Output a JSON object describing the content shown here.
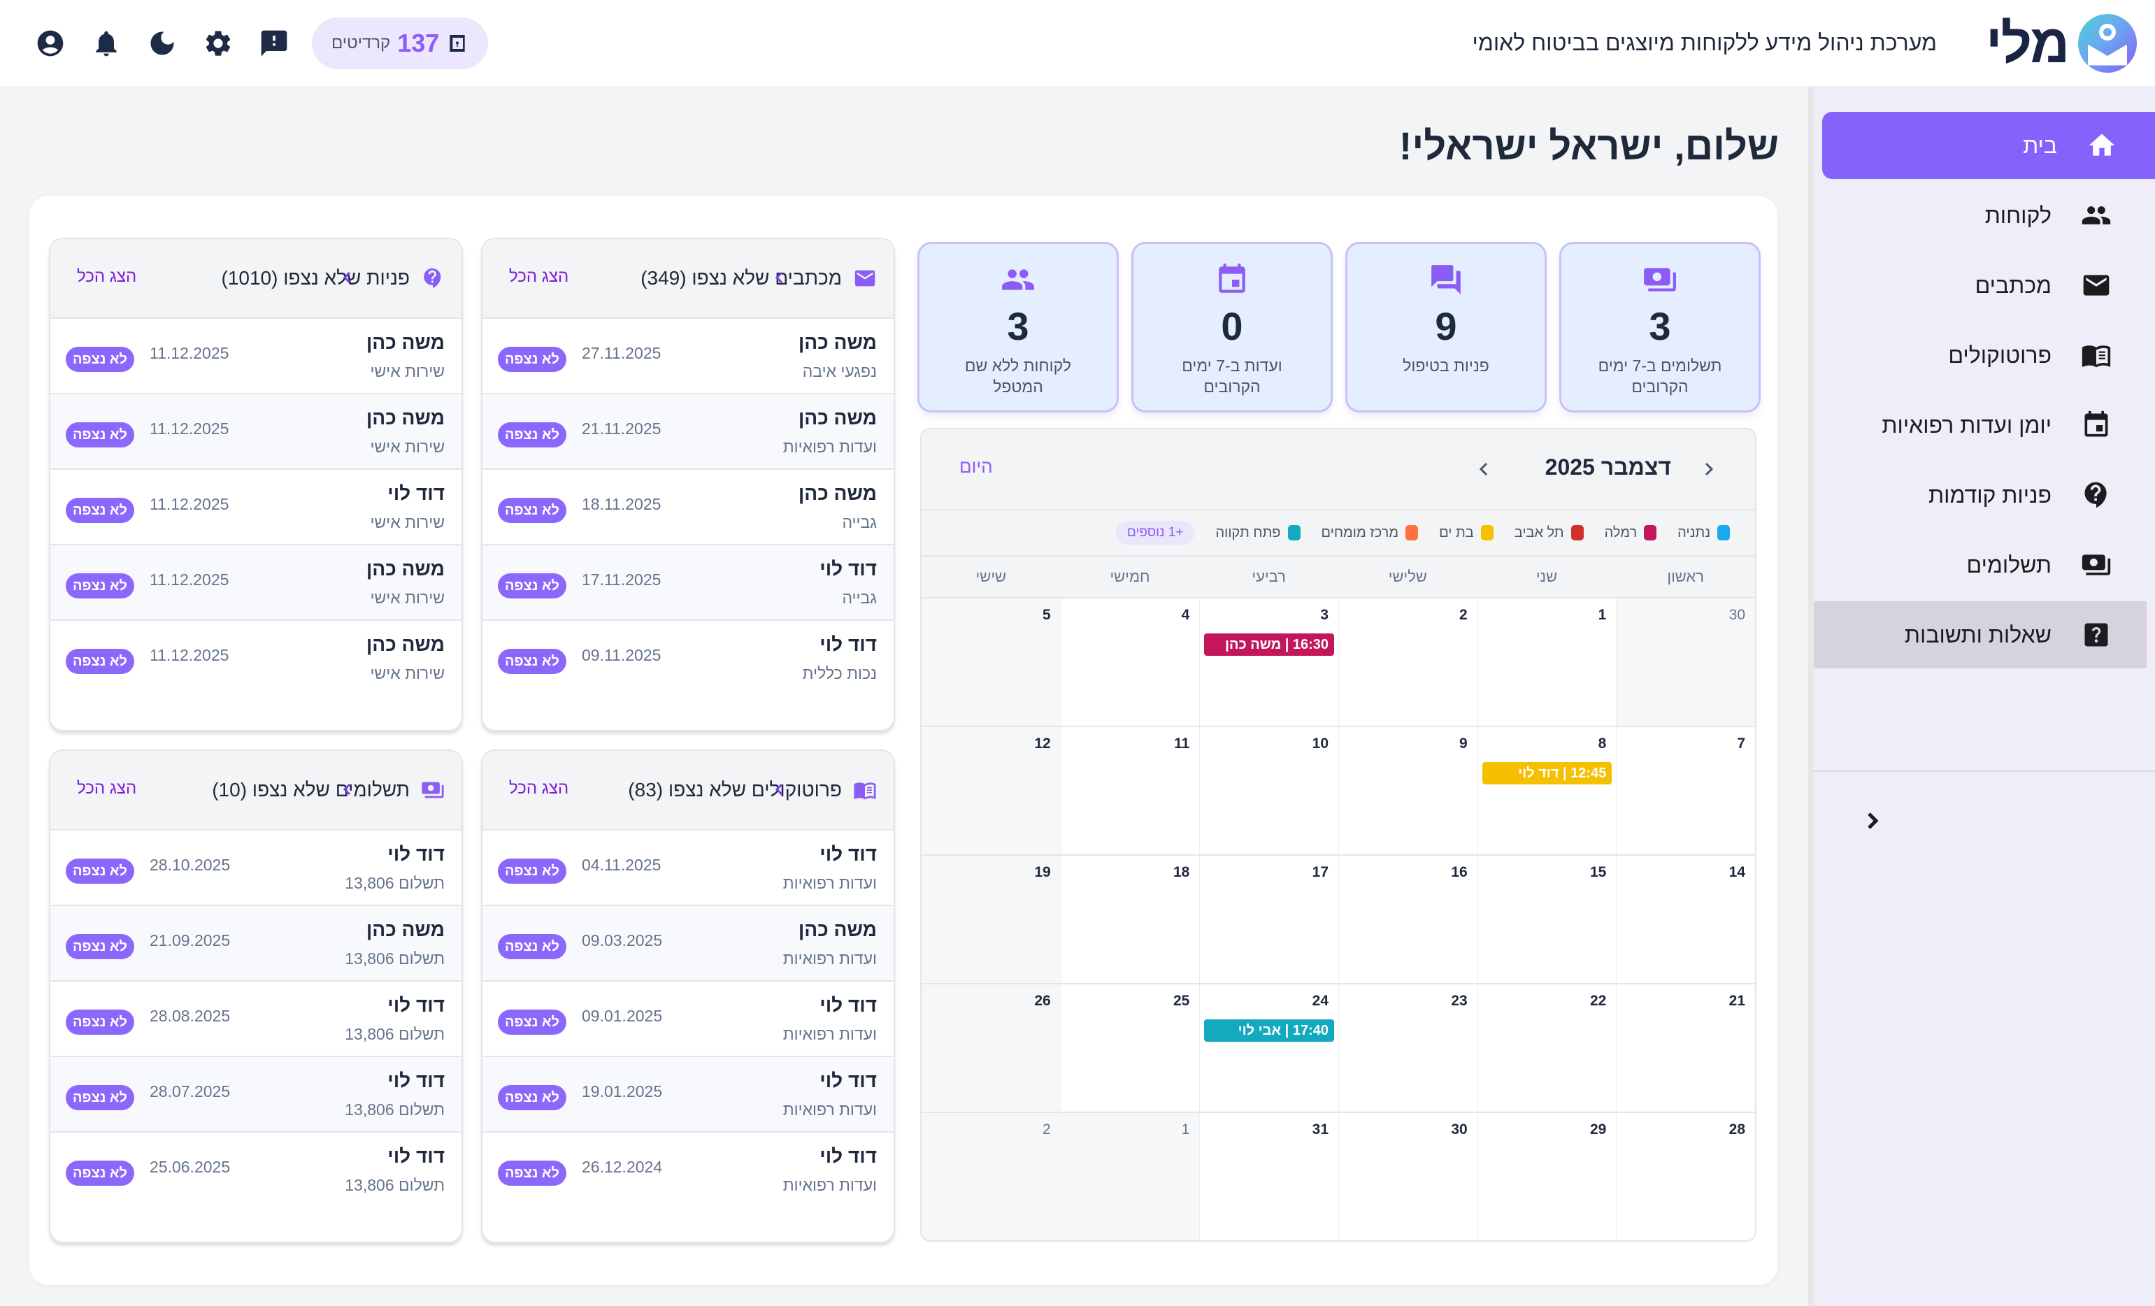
{
  "header": {
    "logo_text": "מלי",
    "tagline": "מערכת ניהול מידע ללקוחות מיוצגים בביטוח לאומי",
    "credits": {
      "value": "137",
      "label": "קרדיטים"
    },
    "icons": [
      "account-icon",
      "bell-icon",
      "moon-icon",
      "gear-icon",
      "feedback-icon"
    ]
  },
  "sidebar": {
    "items": [
      {
        "label": "בית",
        "icon": "home-icon",
        "active": true
      },
      {
        "label": "לקוחות",
        "icon": "people-icon"
      },
      {
        "label": "מכתבים",
        "icon": "mail-icon"
      },
      {
        "label": "פרוטוקולים",
        "icon": "book-icon"
      },
      {
        "label": "יומן ועדות רפואיות",
        "icon": "calendar-icon"
      },
      {
        "label": "פניות קודמות",
        "icon": "question-bubble-icon"
      },
      {
        "label": "תשלומים",
        "icon": "payments-icon"
      },
      {
        "label": "שאלות ותשובות",
        "icon": "faq-icon",
        "hover": true
      }
    ]
  },
  "greeting": "שלום, ישראל ישראלי!",
  "stats": [
    {
      "value": "3",
      "label": "תשלומים ב-7 ימים הקרובים",
      "icon": "payments-icon"
    },
    {
      "value": "9",
      "label": "פניות בטיפול",
      "icon": "chat-icon"
    },
    {
      "value": "0",
      "label": "ועדות ב-7 ימים הקרובים",
      "icon": "calendar-icon"
    },
    {
      "value": "3",
      "label": "לקוחות ללא שם המטפל",
      "icon": "people-icon"
    }
  ],
  "calendar": {
    "title": "דצמבר 2025",
    "today_label": "היום",
    "legend": [
      {
        "label": "נתניה",
        "color": "#1ba8ec"
      },
      {
        "label": "רמלה",
        "color": "#c2185b"
      },
      {
        "label": "תל אביב",
        "color": "#d32f2f"
      },
      {
        "label": "בת ים",
        "color": "#f5c000"
      },
      {
        "label": "מרכז מומחים",
        "color": "#ff7043"
      },
      {
        "label": "פתח תקווה",
        "color": "#13a9bf"
      }
    ],
    "legend_more": "+1 נוספים",
    "weekdays": [
      "ראשון",
      "שני",
      "שלישי",
      "רביעי",
      "חמישי",
      "שישי"
    ],
    "weeks": [
      [
        {
          "d": "30",
          "muted": true
        },
        {
          "d": "1"
        },
        {
          "d": "2"
        },
        {
          "d": "3",
          "event": {
            "text": "16:30 | משה כהן",
            "color": "#c2185b"
          }
        },
        {
          "d": "4"
        },
        {
          "d": "5",
          "shaded": true
        }
      ],
      [
        {
          "d": "7"
        },
        {
          "d": "8",
          "event": {
            "text": "12:45 | דוד לוי",
            "color": "#f5c000"
          }
        },
        {
          "d": "9"
        },
        {
          "d": "10"
        },
        {
          "d": "11"
        },
        {
          "d": "12",
          "shaded": true
        }
      ],
      [
        {
          "d": "14"
        },
        {
          "d": "15"
        },
        {
          "d": "16"
        },
        {
          "d": "17"
        },
        {
          "d": "18"
        },
        {
          "d": "19",
          "shaded": true
        }
      ],
      [
        {
          "d": "21"
        },
        {
          "d": "22"
        },
        {
          "d": "23"
        },
        {
          "d": "24",
          "event": {
            "text": "17:40 | אבי לוי",
            "color": "#13a9bf"
          }
        },
        {
          "d": "25"
        },
        {
          "d": "26",
          "shaded": true
        }
      ],
      [
        {
          "d": "28"
        },
        {
          "d": "29"
        },
        {
          "d": "30"
        },
        {
          "d": "31"
        },
        {
          "d": "1",
          "muted": true
        },
        {
          "d": "2",
          "muted": true
        }
      ]
    ]
  },
  "lists": {
    "show_all": "הצג הכל",
    "badge": "לא נצפה",
    "letters": {
      "title": "מכתבים שלא נצפו (349)",
      "rows": [
        {
          "name": "משה כהן",
          "sub": "נפגעי איבה",
          "date": "27.11.2025"
        },
        {
          "name": "משה כהן",
          "sub": "ועדות רפואיות",
          "date": "21.11.2025"
        },
        {
          "name": "משה כהן",
          "sub": "גבייה",
          "date": "18.11.2025"
        },
        {
          "name": "דוד לוי",
          "sub": "גבייה",
          "date": "17.11.2025"
        },
        {
          "name": "דוד לוי",
          "sub": "נכות כללית",
          "date": "09.11.2025"
        }
      ]
    },
    "inquiries": {
      "title": "פניות שלא נצפו (1010)",
      "rows": [
        {
          "name": "משה כהן",
          "sub": "שירות אישי",
          "date": "11.12.2025"
        },
        {
          "name": "משה כהן",
          "sub": "שירות אישי",
          "date": "11.12.2025"
        },
        {
          "name": "דוד לוי",
          "sub": "שירות אישי",
          "date": "11.12.2025"
        },
        {
          "name": "משה כהן",
          "sub": "שירות אישי",
          "date": "11.12.2025"
        },
        {
          "name": "משה כהן",
          "sub": "שירות אישי",
          "date": "11.12.2025"
        }
      ]
    },
    "protocols": {
      "title": "פרוטוקולים שלא נצפו (83)",
      "rows": [
        {
          "name": "דוד לוי",
          "sub": "ועדות רפואיות",
          "date": "04.11.2025"
        },
        {
          "name": "משה כהן",
          "sub": "ועדות רפואיות",
          "date": "09.03.2025"
        },
        {
          "name": "דוד לוי",
          "sub": "ועדות רפואיות",
          "date": "09.01.2025"
        },
        {
          "name": "דוד לוי",
          "sub": "ועדות רפואיות",
          "date": "19.01.2025"
        },
        {
          "name": "דוד לוי",
          "sub": "ועדות רפואיות",
          "date": "26.12.2024"
        }
      ]
    },
    "payments": {
      "title": "תשלומים שלא נצפו (10)",
      "rows": [
        {
          "name": "דוד לוי",
          "sub": "תשלום 13,806",
          "date": "28.10.2025"
        },
        {
          "name": "משה כהן",
          "sub": "תשלום 13,806",
          "date": "21.09.2025"
        },
        {
          "name": "דוד לוי",
          "sub": "תשלום 13,806",
          "date": "28.08.2025"
        },
        {
          "name": "דוד לוי",
          "sub": "תשלום 13,806",
          "date": "28.07.2025"
        },
        {
          "name": "דוד לוי",
          "sub": "תשלום 13,806",
          "date": "25.06.2025"
        }
      ]
    }
  }
}
